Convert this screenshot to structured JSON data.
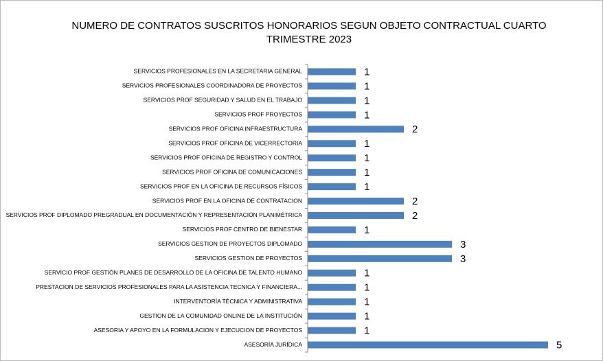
{
  "chart_data": {
    "type": "hbar",
    "title": "NUMERO DE CONTRATOS SUSCRITOS HONORARIOS  SEGUN OBJETO CONTRACTUAL CUARTO TRIMESTRE 2023",
    "categories": [
      "SERVICIOS PROFESIONALES EN LA SECRETARIA GENERAL",
      "SERVICIOS PROFESIONALES COORDINADORA DE PROYECTOS",
      "SERVICIOS PROF SEGURIDAD Y SALUD EN EL TRABAJO",
      "SERVICIOS PROF PROYECTOS",
      "SERVICIOS PROF OFICINA INFRAESTRUCTURA",
      "SERVICIOS PROF OFICINA DE VICERRECTORIA",
      "SERVICIOS PROF OFICINA DE REGISTRO Y CONTROL",
      "SERVICIOS PROF OFICINA DE COMUNICACIONES",
      "SERVICIOS PROF EN LA OFICINA DE RECURSOS FÍSICOS",
      "SERVICIOS PROF EN LA OFICINA DE CONTRATACION",
      "SERVICIOS PROF DIPLOMADO PREGRADUAL EN DOCUMENTACIÓN Y REPRESENTACIÓN PLANIMÉTRICA",
      "SERVICIOS PROF CENTRO DE BIENESTAR",
      "SERVICIOS GESTION DE PROYECTOS DIPLOMADO",
      "SERVICIOS GESTION DE PROYECTOS",
      "SERVICIO PROF GESTIÓN PLANES DE DESARROLLO DE LA OFICINA DE TALENTO HUMANO",
      "PRESTACION DE SERVICIOS PROFESIONALES PARA LA ASISTENCIA TECNICA Y FINANCIERA...",
      "INTERVENTORÍA TÉCNICA Y ADMINISTRATIVA",
      "GESTION DE LA COMUNIDAD ONLINE DE LA INSTITUCIÓN",
      "ASESORIA Y APOYO EN LA FORMULACION Y EJECUCION DE PROYECTOS",
      "ASESORÍA JURÍDICA"
    ],
    "values": [
      1,
      1,
      1,
      1,
      2,
      1,
      1,
      1,
      1,
      2,
      2,
      1,
      3,
      3,
      1,
      1,
      1,
      1,
      1,
      5
    ],
    "color": "#4f81bd",
    "xlim": [
      0,
      5
    ]
  }
}
